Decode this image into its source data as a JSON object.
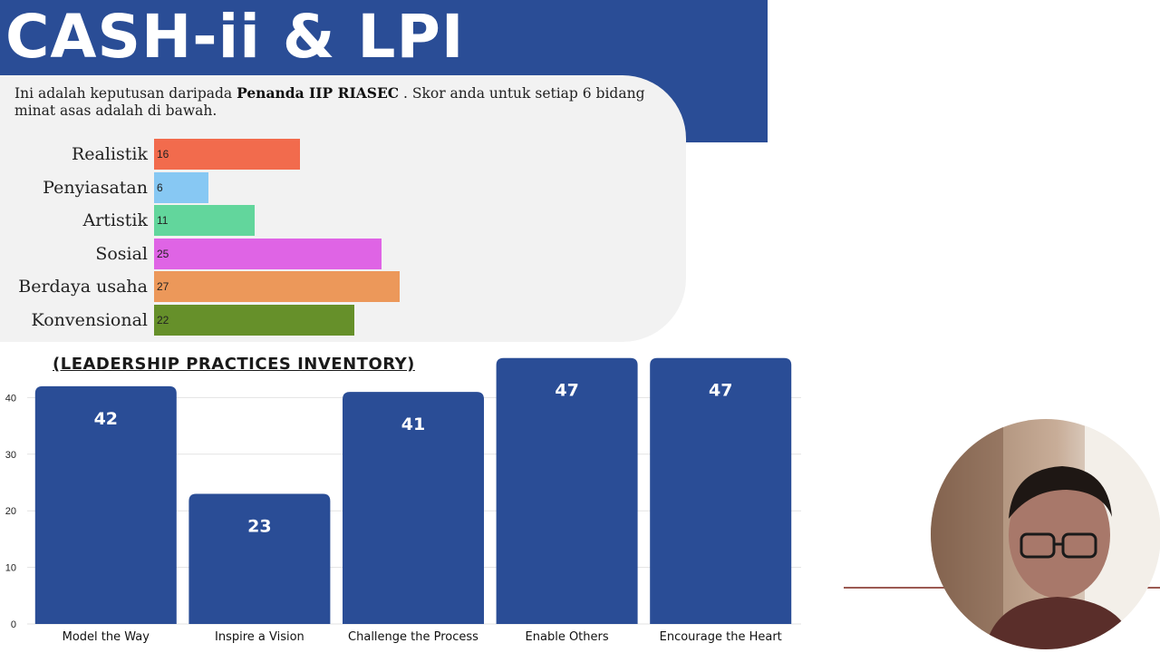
{
  "slide": {
    "title": "CASH-ii & LPI"
  },
  "riasec": {
    "intro_pre": "Ini adalah keputusan daripada ",
    "intro_bold": "Penanda IIP RIASEC",
    "intro_post": " . Skor anda untuk setiap 6 bidang minat asas adalah di bawah.",
    "items": [
      {
        "label": "Realistik",
        "value": 16,
        "color": "#f26b4d"
      },
      {
        "label": "Penyiasatan",
        "value": 6,
        "color": "#87c8f3"
      },
      {
        "label": "Artistik",
        "value": 11,
        "color": "#62d69c"
      },
      {
        "label": "Sosial",
        "value": 25,
        "color": "#df64e5"
      },
      {
        "label": "Berdaya usaha",
        "value": 27,
        "color": "#ec985a"
      },
      {
        "label": "Konvensional",
        "value": 22,
        "color": "#66902a"
      }
    ]
  },
  "chart_data": [
    {
      "type": "bar",
      "orientation": "horizontal",
      "categories": [
        "Realistik",
        "Penyiasatan",
        "Artistik",
        "Sosial",
        "Berdaya usaha",
        "Konvensional"
      ],
      "values": [
        16,
        6,
        11,
        25,
        27,
        22
      ],
      "colors": [
        "#f26b4d",
        "#87c8f3",
        "#62d69c",
        "#df64e5",
        "#ec985a",
        "#66902a"
      ],
      "title": "",
      "xlabel": "",
      "ylabel": ""
    },
    {
      "type": "bar",
      "title": "(LEADERSHIP PRACTICES INVENTORY)",
      "categories": [
        "Model the Way",
        "Inspire a Vision",
        "Challenge the Process",
        "Enable Others",
        "Encourage the Heart"
      ],
      "values": [
        42,
        23,
        41,
        47,
        47
      ],
      "ylim": [
        0,
        50
      ],
      "yticks": [
        0,
        10,
        20,
        30,
        40
      ],
      "grid": true,
      "color": "#2a4d96",
      "xlabel": "",
      "ylabel": ""
    }
  ],
  "webcam": {
    "icon": "webcam-person"
  },
  "colors": {
    "band": "#2a4d96",
    "panel": "#f2f2f2",
    "deco_line": "#9b5a52"
  }
}
